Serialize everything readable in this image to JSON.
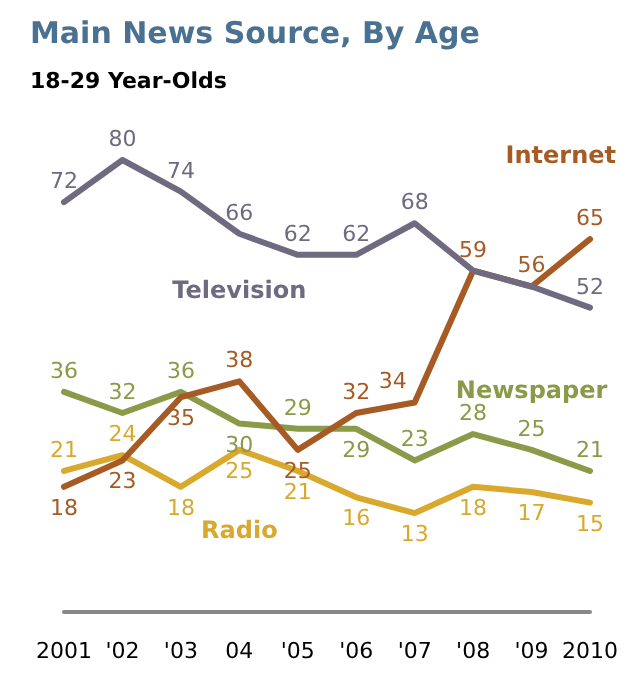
{
  "chart_data": {
    "type": "line",
    "title": "Main News Source, By Age",
    "subtitle": "18-29 Year-Olds",
    "categories": [
      "2001",
      "'02",
      "'03",
      "04",
      "'05",
      "'06",
      "'07",
      "'08",
      "'09",
      "2010"
    ],
    "series": [
      {
        "name": "Television",
        "color": "#6f6a80",
        "values": [
          72,
          80,
          74,
          66,
          62,
          62,
          68,
          59,
          56,
          52
        ],
        "value_labels": [
          "72",
          "80",
          "74",
          "66",
          "62",
          "62",
          "68",
          null,
          null,
          "52"
        ]
      },
      {
        "name": "Internet",
        "color": "#a65a24",
        "values": [
          18,
          23,
          35,
          38,
          25,
          32,
          34,
          59,
          56,
          65
        ],
        "value_labels": [
          "18",
          "23",
          "35",
          "38",
          "25",
          "32",
          "34",
          "59",
          "56",
          "65"
        ]
      },
      {
        "name": "Newspaper",
        "color": "#8a9a48",
        "values": [
          36,
          32,
          36,
          30,
          29,
          29,
          23,
          28,
          25,
          21
        ],
        "value_labels": [
          "36",
          "32",
          "36",
          "30",
          "29",
          "29",
          "23",
          "28",
          "25",
          "21"
        ]
      },
      {
        "name": "Radio",
        "color": "#d8a92c",
        "values": [
          21,
          24,
          18,
          25,
          21,
          16,
          13,
          18,
          17,
          15
        ],
        "value_labels": [
          "21",
          "24",
          "18",
          "25",
          "21",
          "16",
          "13",
          "18",
          "17",
          "15"
        ]
      }
    ],
    "legend": false,
    "grid": false,
    "marker": "none",
    "line_style": "solid"
  }
}
